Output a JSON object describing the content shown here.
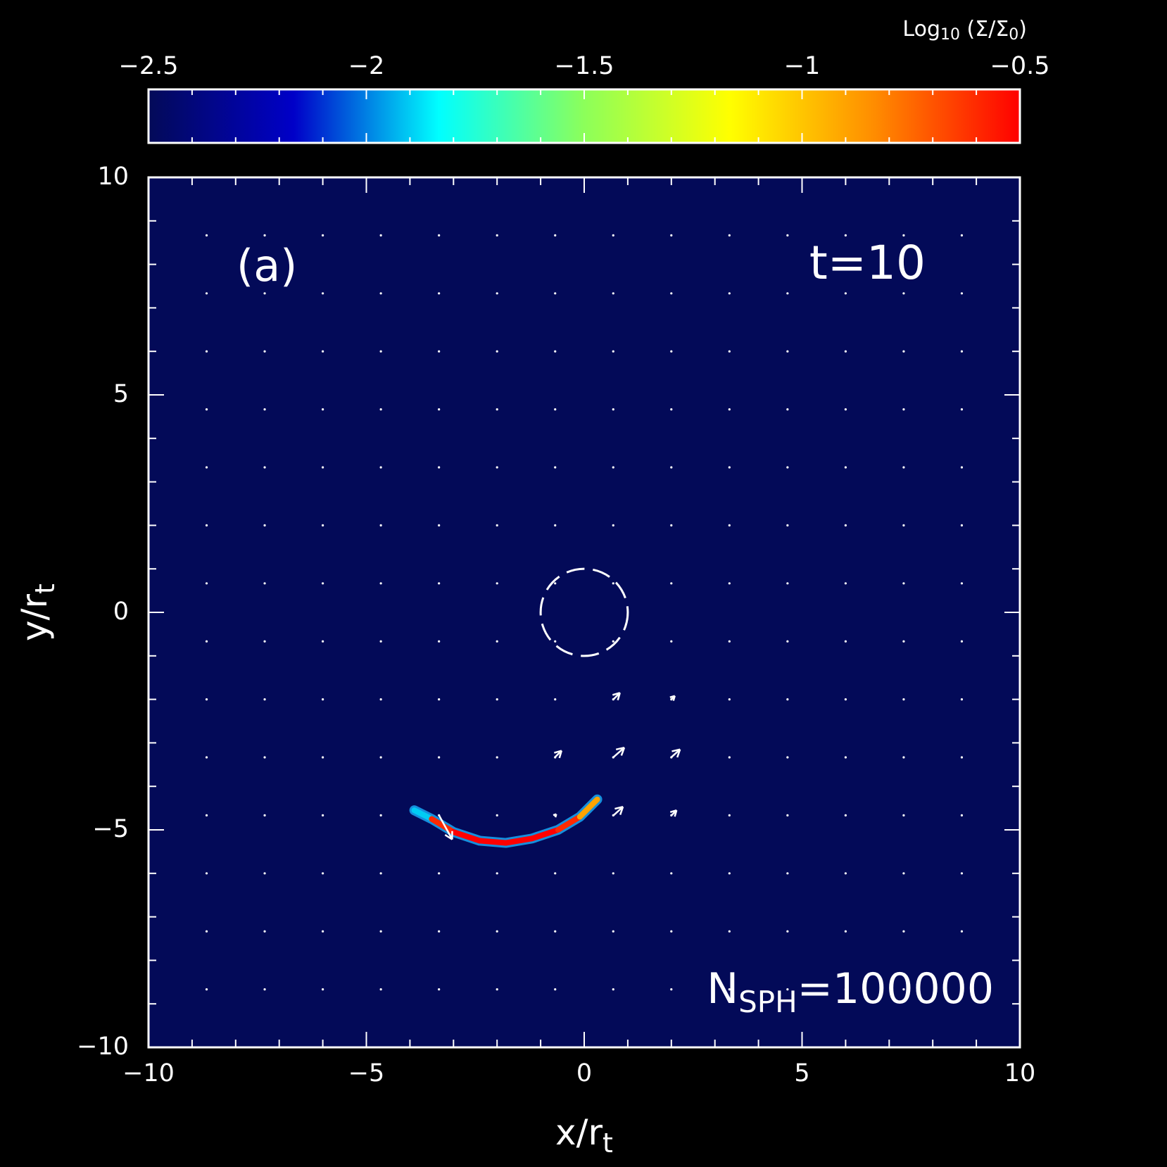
{
  "chart_data": {
    "type": "density-map",
    "colorbar_label": [
      "Log",
      "10",
      " (Σ/Σ",
      "0",
      ")"
    ],
    "colorbar_lim": [
      -2.5,
      -0.5
    ],
    "colorbar_ticks": [
      {
        "value": -2.5,
        "label": "−2.5"
      },
      {
        "value": -2,
        "label": "−2"
      },
      {
        "value": -1.5,
        "label": "−1.5"
      },
      {
        "value": -1,
        "label": "−1"
      },
      {
        "value": -0.5,
        "label": "−0.5"
      }
    ],
    "colormap": [
      "#030a58",
      "#0000c8",
      "#00ffff",
      "#8cff5a",
      "#ffff00",
      "#ff8c00",
      "#ff0000"
    ],
    "background": "#030a58",
    "xlabel": [
      "x/r",
      "t"
    ],
    "ylabel": [
      "y/r",
      "t"
    ],
    "xlim": [
      -10,
      10
    ],
    "ylim": [
      -10,
      10
    ],
    "xticks": [
      {
        "value": -10,
        "label": "−10"
      },
      {
        "value": -5,
        "label": "−5"
      },
      0,
      5,
      10
    ],
    "yticks": [
      {
        "value": -10,
        "label": "−10"
      },
      {
        "value": -5,
        "label": "−5"
      },
      0,
      5,
      10
    ],
    "panel_label": "(a)",
    "time_label": "t=10",
    "particles_label": [
      "N",
      "SPH",
      "=100000"
    ],
    "stream": {
      "x": [
        -3.9,
        -3.5,
        -3.0,
        -2.4,
        -1.8,
        -1.2,
        -0.6,
        -0.1,
        0.3
      ],
      "y": [
        -4.55,
        -4.75,
        -5.05,
        -5.25,
        -5.3,
        -5.2,
        -5.0,
        -4.7,
        -4.3
      ],
      "values": [
        -1.9,
        -0.6,
        -0.5,
        -0.5,
        -0.5,
        -0.5,
        -0.6,
        -0.9,
        -1.3
      ]
    },
    "velocity": {
      "x": [
        0.67,
        2.0,
        -0.67,
        0.67,
        2.0,
        -0.67,
        0.67,
        2.0,
        -3.33
      ],
      "y": [
        -2.0,
        -2.0,
        -3.33,
        -3.33,
        -3.33,
        -4.67,
        -4.67,
        -4.67,
        -4.67
      ],
      "u": [
        0.15,
        0.08,
        0.15,
        0.25,
        0.2,
        0.03,
        0.22,
        0.12,
        0.3
      ],
      "v": [
        0.15,
        0.08,
        0.15,
        0.22,
        0.18,
        0.03,
        0.2,
        0.12,
        -0.55
      ]
    },
    "circle": {
      "x": 0,
      "y": 0,
      "r": 1
    }
  }
}
